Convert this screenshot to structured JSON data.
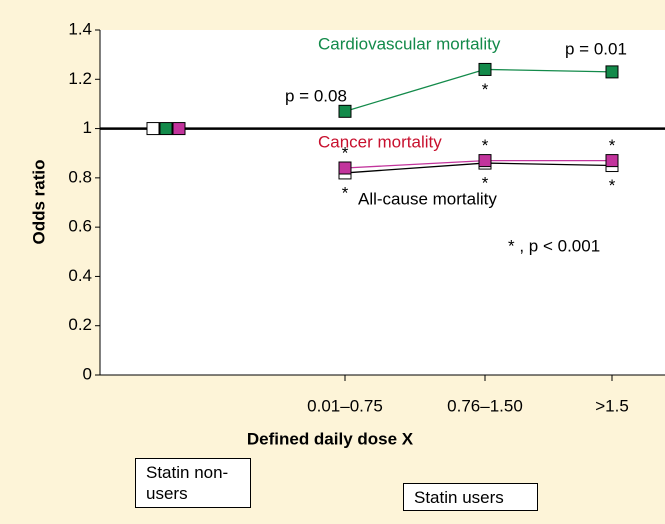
{
  "chart_data": {
    "type": "line",
    "x_label": "Defined daily dose X",
    "y_label": "Odds ratio",
    "categories": [
      null,
      "0.01–0.75",
      "0.76–1.50",
      ">1.5"
    ],
    "series": [
      {
        "name": "All-cause mortality",
        "color": "#ffffff",
        "line_color": "#000000",
        "label_color": "#000000",
        "values": [
          1.0,
          0.82,
          0.86,
          0.85
        ],
        "significance": [
          null,
          "*",
          "*",
          "*"
        ]
      },
      {
        "name": "Cardiovascular mortality",
        "color": "#138a4a",
        "line_color": "#138a4a",
        "label_color": "#138a4a",
        "values": [
          1.0,
          1.07,
          1.24,
          1.23
        ],
        "significance": [
          null,
          null,
          "*",
          null
        ]
      },
      {
        "name": "Cancer mortality",
        "color": "#c2349c",
        "line_color": "#c2349c",
        "label_color": "#c8102e",
        "values": [
          1.0,
          0.84,
          0.87,
          0.87
        ],
        "significance": [
          null,
          "*",
          "*",
          "*"
        ]
      }
    ],
    "annotations": [
      "p = 0.08",
      "p = 0.01",
      "* , p < 0.001"
    ],
    "reference_line": 1,
    "groups": [
      "Statin non-users",
      "Statin users"
    ],
    "ylim": [
      0,
      1.4
    ],
    "yticks": [
      0,
      0.2,
      0.4,
      0.6,
      0.8,
      1,
      1.2,
      1.4
    ]
  }
}
